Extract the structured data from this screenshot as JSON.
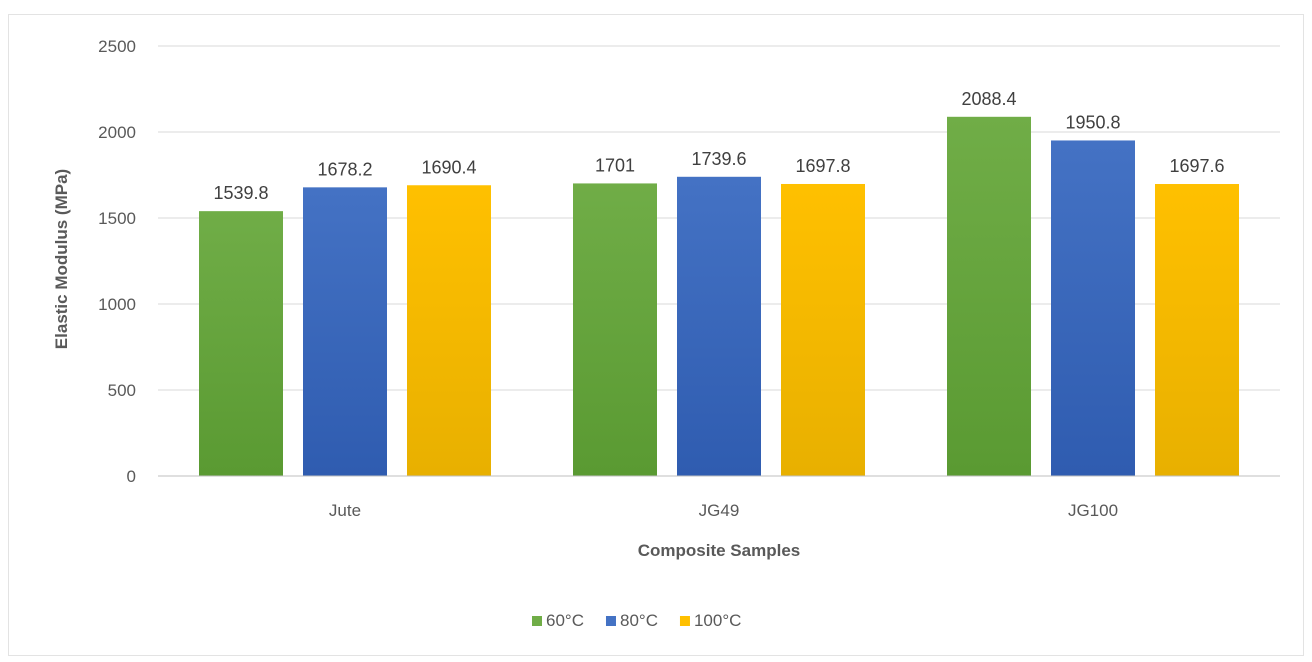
{
  "chart_data": {
    "type": "bar",
    "title": "",
    "xlabel": "Composite Samples",
    "ylabel": "Elastic Modulus (MPa)",
    "categories": [
      "Jute",
      "JG49",
      "JG100"
    ],
    "series": [
      {
        "name": "60°C",
        "values": [
          1539.8,
          1701,
          2088.4
        ],
        "labels": [
          "1539.8",
          "1701",
          "2088.4"
        ],
        "color": "#70ad47",
        "color_dark": "#5a9a32"
      },
      {
        "name": "80°C",
        "values": [
          1678.2,
          1739.6,
          1950.8
        ],
        "labels": [
          "1678.2",
          "1739.6",
          "1950.8"
        ],
        "color": "#4472c4",
        "color_dark": "#2f5cb0"
      },
      {
        "name": "100°C",
        "values": [
          1690.4,
          1697.8,
          1697.6
        ],
        "labels": [
          "1690.4",
          "1697.8",
          "1697.6"
        ],
        "color": "#ffc000",
        "color_dark": "#e8b000"
      }
    ],
    "ylim": [
      0,
      2500
    ],
    "yticks": [
      "0",
      "500",
      "1000",
      "1500",
      "2000",
      "2500"
    ],
    "grid": true,
    "gridline_color": "#d9d9d9",
    "legend_position": "bottom"
  }
}
